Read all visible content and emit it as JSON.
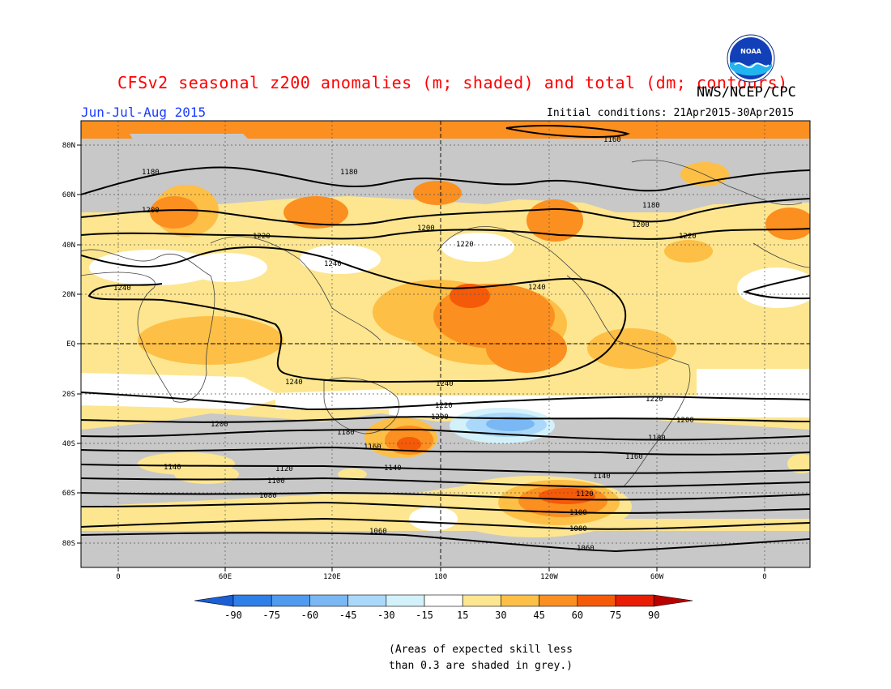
{
  "header": {
    "title": "CFSv2 seasonal z200 anomalies (m; shaded) and total (dm; contours)",
    "agency": "NWS/NCEP/CPC",
    "logo_text": "NOAA",
    "period": "Jun-Jul-Aug 2015",
    "initial_conditions": "Initial conditions: 21Apr2015-30Apr2015"
  },
  "map": {
    "lat_labels": [
      "80N",
      "60N",
      "40N",
      "20N",
      "EQ",
      "20S",
      "40S",
      "60S",
      "80S"
    ],
    "lon_labels": [
      "0",
      "60E",
      "120E",
      "180",
      "120W",
      "60W",
      "0"
    ],
    "contour_labels": [
      "1160",
      "1180",
      "1180",
      "1180",
      "1200",
      "1200",
      "1200",
      "1220",
      "1220",
      "1220",
      "1240",
      "1240",
      "1240",
      "1240",
      "1240",
      "1220",
      "1220",
      "1200",
      "1200",
      "1200",
      "1180",
      "1180",
      "1160",
      "1160",
      "1140",
      "1140",
      "1140",
      "1120",
      "1120",
      "1100",
      "1100",
      "1080",
      "1080",
      "1060",
      "1060"
    ]
  },
  "colorbar": {
    "labels": [
      "-90",
      "-75",
      "-60",
      "-45",
      "-30",
      "-15",
      "15",
      "30",
      "45",
      "60",
      "75",
      "90"
    ],
    "colors": [
      "#1a5fd6",
      "#2f7fe8",
      "#4f9bef",
      "#7ab8f5",
      "#aad8fa",
      "#d2f1fb",
      "#ffffff",
      "#fde68f",
      "#fdbf45",
      "#fb8f1f",
      "#f55a08",
      "#e81d04",
      "#b80000"
    ]
  },
  "note": {
    "line1": "(Areas of expected skill less",
    "line2": "than 0.3 are shaded in grey.)"
  }
}
